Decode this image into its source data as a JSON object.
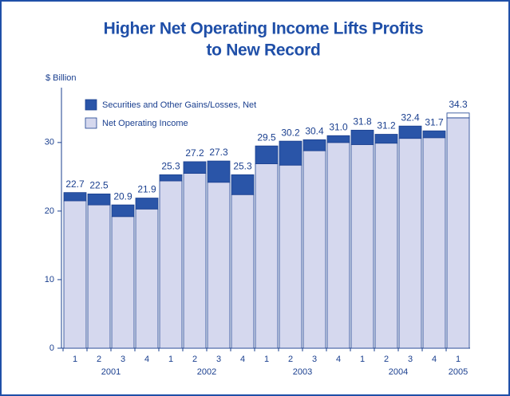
{
  "chart_data": {
    "type": "stacked_bar",
    "title": [
      "Higher Net Operating Income Lifts Profits",
      "to New Record"
    ],
    "y_label": "$ Billion",
    "categories": [
      "1",
      "2",
      "3",
      "4",
      "1",
      "2",
      "3",
      "4",
      "1",
      "2",
      "3",
      "4",
      "1",
      "2",
      "3",
      "4",
      "1"
    ],
    "years": [
      "2001",
      "2002",
      "2003",
      "2004",
      "2005"
    ],
    "ylim": [
      0,
      38
    ],
    "yticks": [
      0,
      10,
      20,
      30
    ],
    "totals": [
      22.7,
      22.5,
      20.9,
      21.9,
      25.3,
      27.2,
      27.3,
      25.3,
      29.5,
      30.2,
      30.4,
      31.0,
      31.8,
      31.2,
      32.4,
      31.7,
      34.3
    ],
    "totals_labels": [
      "22.7",
      "22.5",
      "20.9",
      "21.9",
      "25.3",
      "27.2",
      "27.3",
      "25.3",
      "29.5",
      "30.2",
      "30.4",
      "31.0",
      "31.8",
      "31.2",
      "32.4",
      "31.7",
      "34.3"
    ],
    "series": [
      {
        "name": "Net Operating Income",
        "color": "#d5d8ee",
        "values": [
          21.5,
          20.9,
          19.2,
          20.3,
          24.4,
          25.5,
          24.2,
          22.4,
          26.9,
          26.7,
          28.8,
          30.0,
          29.7,
          29.9,
          30.6,
          30.7,
          33.6
        ]
      },
      {
        "name": "Securities and Other Gains/Losses, Net",
        "color": "#2a55a8",
        "colors": [
          "#2a55a8",
          "#2a55a8",
          "#2a55a8",
          "#2a55a8",
          "#2a55a8",
          "#2a55a8",
          "#2a55a8",
          "#2a55a8",
          "#2a55a8",
          "#2a55a8",
          "#2a55a8",
          "#2a55a8",
          "#2a55a8",
          "#2a55a8",
          "#2a55a8",
          "#2a55a8",
          "#ffffff"
        ],
        "values": [
          1.2,
          1.6,
          1.7,
          1.6,
          0.9,
          1.7,
          3.1,
          2.9,
          2.6,
          3.5,
          1.6,
          1.0,
          2.1,
          1.3,
          1.8,
          1.0,
          0.7
        ]
      }
    ]
  }
}
